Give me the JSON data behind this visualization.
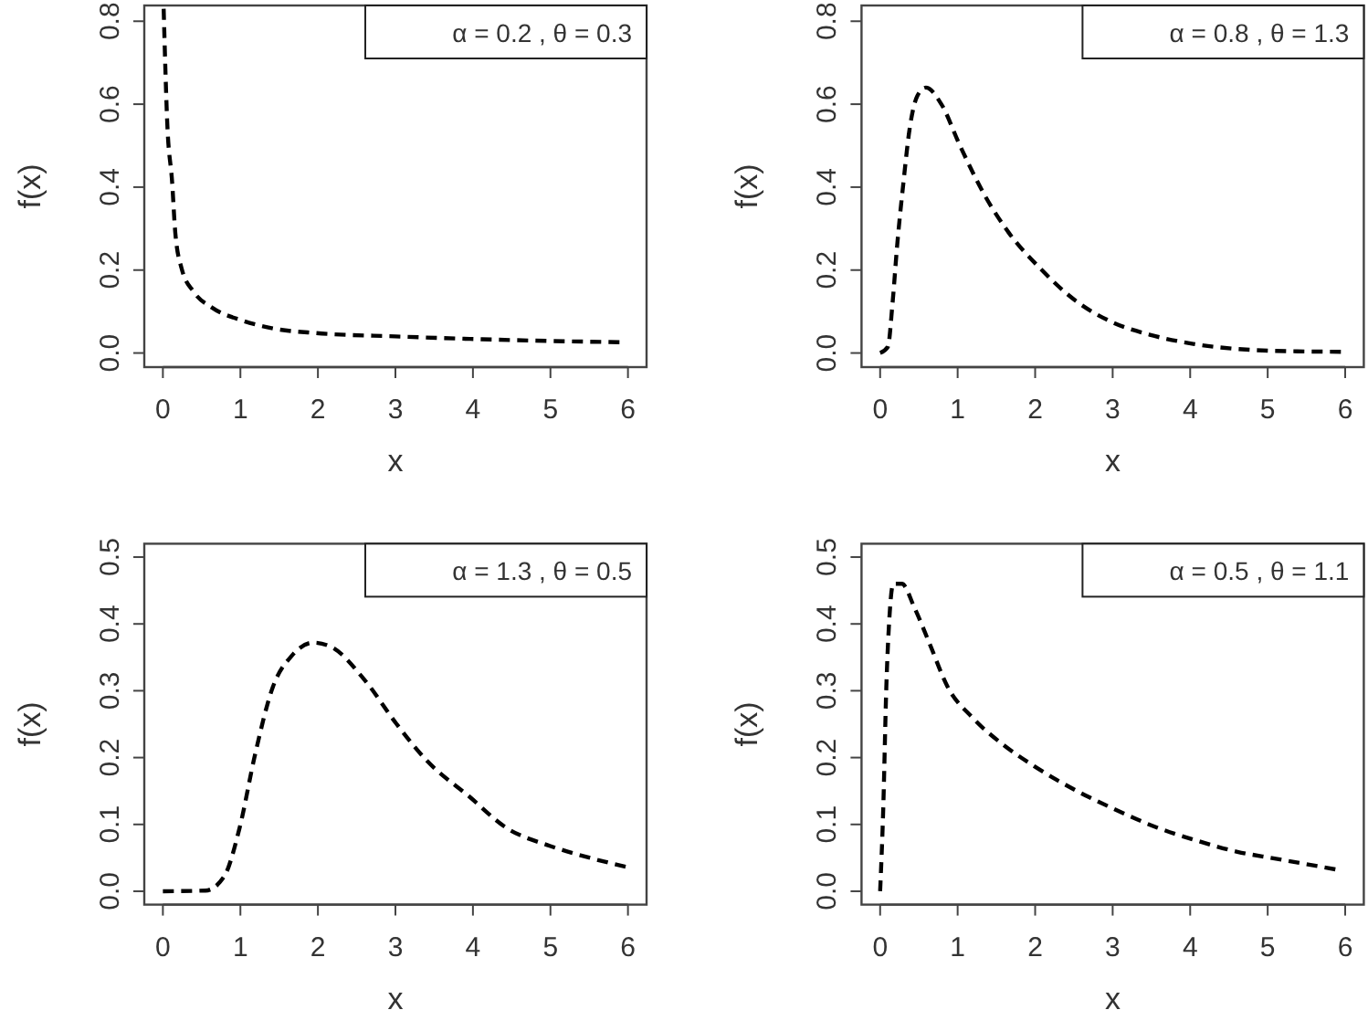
{
  "chart_data": [
    {
      "type": "line",
      "xlabel": "x",
      "ylabel": "f(x)",
      "annotations": [
        "α = 0.2 , θ = 0.3"
      ],
      "line_style": "dashed",
      "xlim": [
        -0.24,
        6.24
      ],
      "ylim": [
        -0.034,
        0.838
      ],
      "xticks": [
        0,
        1,
        2,
        3,
        4,
        5,
        6
      ],
      "yticks": [
        {
          "value": 0,
          "label": "0.0"
        },
        {
          "value": 0.2,
          "label": "0.2"
        },
        {
          "value": 0.4,
          "label": "0.4"
        },
        {
          "value": 0.6,
          "label": "0.6"
        },
        {
          "value": 0.8,
          "label": "0.8"
        }
      ],
      "series": [
        {
          "color": "#000000",
          "x": [
            0.01,
            0.055,
            0.12,
            0.16,
            0.24,
            0.4,
            0.63,
            1.03,
            1.43,
            1.98,
            3.0,
            3.96,
            4.99,
            5.94
          ],
          "values": [
            0.83,
            0.56,
            0.41,
            0.29,
            0.205,
            0.147,
            0.11,
            0.078,
            0.059,
            0.048,
            0.04,
            0.034,
            0.029,
            0.026
          ]
        }
      ]
    },
    {
      "type": "line",
      "xlabel": "x",
      "ylabel": "f(x)",
      "annotations": [
        "α = 0.8 , θ = 1.3"
      ],
      "line_style": "dashed",
      "xlim": [
        -0.24,
        6.24
      ],
      "ylim": [
        -0.034,
        0.838
      ],
      "xticks": [
        0,
        1,
        2,
        3,
        4,
        5,
        6
      ],
      "yticks": [
        {
          "value": 0,
          "label": "0.0"
        },
        {
          "value": 0.2,
          "label": "0.2"
        },
        {
          "value": 0.4,
          "label": "0.4"
        },
        {
          "value": 0.6,
          "label": "0.6"
        },
        {
          "value": 0.8,
          "label": "0.8"
        }
      ],
      "series": [
        {
          "color": "#000000",
          "x": [
            0,
            0.1,
            0.16,
            0.22,
            0.3,
            0.38,
            0.48,
            0.59,
            0.79,
            1.03,
            1.35,
            1.66,
            2.06,
            2.53,
            3.01,
            3.48,
            4.04,
            4.59,
            5.38,
            6.0
          ],
          "values": [
            0,
            0.015,
            0.12,
            0.26,
            0.41,
            0.54,
            0.62,
            0.64,
            0.6,
            0.5,
            0.38,
            0.29,
            0.205,
            0.125,
            0.073,
            0.044,
            0.022,
            0.01,
            0.004,
            0.003
          ]
        }
      ]
    },
    {
      "type": "line",
      "xlabel": "x",
      "ylabel": "f(x)",
      "annotations": [
        "α = 1.3 , θ = 0.5"
      ],
      "line_style": "dashed",
      "xlim": [
        -0.24,
        6.24
      ],
      "ylim": [
        -0.02,
        0.52
      ],
      "xticks": [
        0,
        1,
        2,
        3,
        4,
        5,
        6
      ],
      "yticks": [
        {
          "value": 0,
          "label": "0.0"
        },
        {
          "value": 0.1,
          "label": "0.1"
        },
        {
          "value": 0.2,
          "label": "0.2"
        },
        {
          "value": 0.3,
          "label": "0.3"
        },
        {
          "value": 0.4,
          "label": "0.4"
        },
        {
          "value": 0.5,
          "label": "0.5"
        }
      ],
      "series": [
        {
          "color": "#000000",
          "x": [
            0,
            0.55,
            0.79,
            0.99,
            1.19,
            1.42,
            1.66,
            1.94,
            2.18,
            2.61,
            3.01,
            3.4,
            3.96,
            4.43,
            4.99,
            5.54,
            6.0
          ],
          "values": [
            0,
            0.001,
            0.022,
            0.095,
            0.205,
            0.306,
            0.352,
            0.372,
            0.365,
            0.315,
            0.251,
            0.196,
            0.141,
            0.095,
            0.068,
            0.049,
            0.036
          ]
        }
      ]
    },
    {
      "type": "line",
      "xlabel": "x",
      "ylabel": "f(x)",
      "annotations": [
        "α = 0.5 , θ = 1.1"
      ],
      "line_style": "dashed",
      "xlim": [
        -0.24,
        6.24
      ],
      "ylim": [
        -0.02,
        0.52
      ],
      "xticks": [
        0,
        1,
        2,
        3,
        4,
        5,
        6
      ],
      "yticks": [
        {
          "value": 0,
          "label": "0.0"
        },
        {
          "value": 0.1,
          "label": "0.1"
        },
        {
          "value": 0.2,
          "label": "0.2"
        },
        {
          "value": 0.3,
          "label": "0.3"
        },
        {
          "value": 0.4,
          "label": "0.4"
        },
        {
          "value": 0.5,
          "label": "0.5"
        }
      ],
      "series": [
        {
          "color": "#000000",
          "x": [
            0,
            0.04,
            0.08,
            0.12,
            0.17,
            0.28,
            0.44,
            0.64,
            0.87,
            1.19,
            1.59,
            1.99,
            2.54,
            3.02,
            3.58,
            4.05,
            4.61,
            5.09,
            5.96
          ],
          "values": [
            0,
            0.123,
            0.306,
            0.41,
            0.46,
            0.46,
            0.425,
            0.37,
            0.306,
            0.26,
            0.219,
            0.187,
            0.15,
            0.123,
            0.095,
            0.077,
            0.059,
            0.049,
            0.031
          ]
        }
      ]
    }
  ]
}
